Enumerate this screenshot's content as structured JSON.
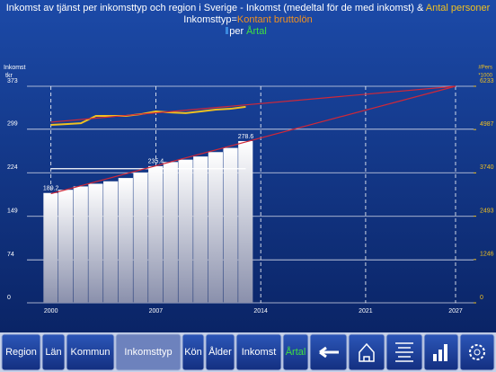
{
  "chart_data": {
    "type": "combo",
    "title": "Inkomst av tjänst per inkomsttyp och region i Sverige - Inkomst (medeltal för de med inkomst) & ",
    "title_highlight": "Antal personer",
    "subtitle_label": "Inkomsttyp=",
    "subtitle_value": "Kontant bruttolön",
    "by_label": "per ",
    "by_value": "Årtal",
    "ylabel": [
      "Inkomst",
      "tkr"
    ],
    "y2label": [
      "#Pers",
      "*1000"
    ],
    "x": [
      2000,
      2001,
      2002,
      2003,
      2004,
      2005,
      2006,
      2007,
      2008,
      2009,
      2010,
      2011,
      2012,
      2013
    ],
    "xlim": [
      1998.4,
      2028.2
    ],
    "xticks": [
      2000,
      2007,
      2014,
      2021,
      2027
    ],
    "ylim": [
      0,
      373
    ],
    "yticks": [
      0,
      74,
      149,
      224,
      299,
      373
    ],
    "y2lim": [
      0,
      6233
    ],
    "y2ticks": [
      0,
      1246,
      2493,
      3740,
      4987,
      6233
    ],
    "grid": true,
    "series": [
      {
        "name": "Inkomst",
        "type": "bar",
        "axis": "y",
        "color": "#c8ccd8",
        "values": [
          189.2,
          194.7,
          200.5,
          205.1,
          209.3,
          215.0,
          223.7,
          235.4,
          242.5,
          246.6,
          252.0,
          259.6,
          266.8,
          278.6
        ]
      },
      {
        "name": "Antal personer",
        "type": "line",
        "axis": "y2",
        "color": "#f0c020",
        "values": [
          5120,
          5145,
          5170,
          5380,
          5380,
          5380,
          5430,
          5510,
          5480,
          5460,
          5510,
          5560,
          5585,
          5640
        ]
      }
    ],
    "labeled_points": [
      0,
      7,
      13
    ],
    "mean_line": {
      "color": "#ffffff",
      "value": 231,
      "x": [
        2000,
        2013
      ]
    },
    "trend_lines": [
      {
        "color": "#d02838",
        "axis": "y",
        "x": [
          2000,
          2027
        ],
        "values": [
          188,
          373
        ]
      },
      {
        "color": "#d02838",
        "axis": "y2",
        "x": [
          2000,
          2027
        ],
        "values": [
          5200,
          6233
        ]
      }
    ]
  },
  "toolbar": [
    "Region",
    "Län",
    "Kommun",
    "Inkomsttyp",
    "Kön",
    "Ålder",
    "Inkomst",
    "Årtal"
  ],
  "toolbar_selected": 3
}
